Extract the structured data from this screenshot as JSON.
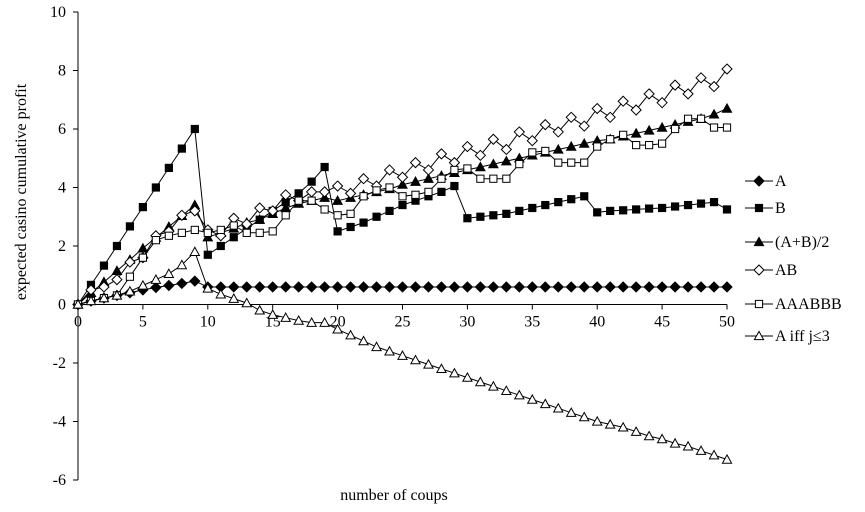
{
  "chart_data": {
    "type": "line",
    "title": "",
    "xlabel": "number of coups",
    "ylabel": "expected casino cumulative profit",
    "xlim": [
      0,
      50
    ],
    "ylim": [
      -6,
      10
    ],
    "xticks": [
      0,
      5,
      10,
      15,
      20,
      25,
      30,
      35,
      40,
      45,
      50
    ],
    "yticks": [
      -6,
      -4,
      -2,
      0,
      2,
      4,
      6,
      8,
      10
    ],
    "grid": false,
    "legend_position": "right",
    "x": [
      0,
      1,
      2,
      3,
      4,
      5,
      6,
      7,
      8,
      9,
      10,
      11,
      12,
      13,
      14,
      15,
      16,
      17,
      18,
      19,
      20,
      21,
      22,
      23,
      24,
      25,
      26,
      27,
      28,
      29,
      30,
      31,
      32,
      33,
      34,
      35,
      36,
      37,
      38,
      39,
      40,
      41,
      42,
      43,
      44,
      45,
      46,
      47,
      48,
      49,
      50
    ],
    "series": [
      {
        "name": "A",
        "marker": "diamond-filled",
        "values": [
          0,
          0.12,
          0.22,
          0.31,
          0.4,
          0.5,
          0.58,
          0.65,
          0.72,
          0.8,
          0.6,
          0.6,
          0.6,
          0.6,
          0.6,
          0.6,
          0.6,
          0.6,
          0.6,
          0.6,
          0.6,
          0.6,
          0.6,
          0.6,
          0.6,
          0.6,
          0.6,
          0.6,
          0.6,
          0.6,
          0.6,
          0.6,
          0.6,
          0.6,
          0.6,
          0.6,
          0.6,
          0.6,
          0.6,
          0.6,
          0.6,
          0.6,
          0.6,
          0.6,
          0.6,
          0.6,
          0.6,
          0.6,
          0.6,
          0.6,
          0.6
        ]
      },
      {
        "name": "B",
        "marker": "square-filled",
        "values": [
          0,
          0.67,
          1.33,
          2.0,
          2.67,
          3.33,
          4.0,
          4.67,
          5.33,
          6.0,
          1.7,
          2.0,
          2.3,
          2.6,
          2.9,
          3.2,
          3.5,
          3.8,
          4.2,
          4.7,
          2.5,
          2.65,
          2.8,
          3.0,
          3.2,
          3.4,
          3.55,
          3.7,
          3.85,
          4.05,
          2.95,
          3.0,
          3.05,
          3.1,
          3.2,
          3.3,
          3.4,
          3.5,
          3.6,
          3.7,
          3.15,
          3.2,
          3.22,
          3.25,
          3.28,
          3.3,
          3.35,
          3.4,
          3.45,
          3.5,
          3.25
        ]
      },
      {
        "name": "(A+B)/2",
        "marker": "triangle-filled",
        "values": [
          0,
          0.4,
          0.77,
          1.15,
          1.53,
          1.92,
          2.29,
          2.66,
          3.03,
          3.4,
          2.3,
          2.45,
          2.6,
          2.8,
          2.9,
          3.1,
          3.3,
          3.45,
          3.55,
          3.65,
          3.55,
          3.65,
          3.75,
          3.85,
          3.95,
          4.1,
          4.2,
          4.3,
          4.4,
          4.5,
          4.6,
          4.7,
          4.8,
          4.9,
          5.0,
          5.1,
          5.2,
          5.3,
          5.4,
          5.5,
          5.6,
          5.65,
          5.75,
          5.85,
          5.95,
          6.05,
          6.15,
          6.25,
          6.35,
          6.5,
          6.7
        ]
      },
      {
        "name": "AB",
        "marker": "diamond-open",
        "values": [
          0,
          0.5,
          0.6,
          0.85,
          1.45,
          1.6,
          2.35,
          2.5,
          3.05,
          3.2,
          2.55,
          2.35,
          2.95,
          2.75,
          3.3,
          3.2,
          3.75,
          3.55,
          3.85,
          3.85,
          4.05,
          3.8,
          4.3,
          4.05,
          4.6,
          4.35,
          4.85,
          4.6,
          5.15,
          4.85,
          5.4,
          5.1,
          5.65,
          5.3,
          5.9,
          5.6,
          6.15,
          5.9,
          6.4,
          6.1,
          6.7,
          6.4,
          6.95,
          6.65,
          7.2,
          6.9,
          7.5,
          7.2,
          7.75,
          7.45,
          8.05
        ]
      },
      {
        "name": "AAABBB",
        "marker": "square-open",
        "values": [
          0,
          0.12,
          0.22,
          0.31,
          0.95,
          1.6,
          2.2,
          2.35,
          2.45,
          2.55,
          2.45,
          2.55,
          2.7,
          2.45,
          2.45,
          2.5,
          3.05,
          3.55,
          3.55,
          3.25,
          3.05,
          3.1,
          3.7,
          3.9,
          4.0,
          3.7,
          3.75,
          3.85,
          4.3,
          4.6,
          4.65,
          4.3,
          4.3,
          4.3,
          4.8,
          5.2,
          5.25,
          4.85,
          4.85,
          4.85,
          5.4,
          5.65,
          5.8,
          5.45,
          5.45,
          5.5,
          6.0,
          6.35,
          6.35,
          6.05,
          6.05
        ]
      },
      {
        "name": "A iff j≤3",
        "marker": "triangle-open",
        "values": [
          0,
          0.12,
          0.22,
          0.31,
          0.45,
          0.65,
          0.85,
          1.05,
          1.35,
          1.8,
          0.55,
          0.35,
          0.2,
          0.05,
          -0.2,
          -0.35,
          -0.45,
          -0.55,
          -0.62,
          -0.62,
          -0.85,
          -1.05,
          -1.25,
          -1.45,
          -1.6,
          -1.75,
          -1.9,
          -2.05,
          -2.2,
          -2.35,
          -2.5,
          -2.65,
          -2.8,
          -2.95,
          -3.1,
          -3.25,
          -3.4,
          -3.55,
          -3.7,
          -3.85,
          -4.0,
          -4.1,
          -4.2,
          -4.35,
          -4.5,
          -4.6,
          -4.75,
          -4.85,
          -5.0,
          -5.15,
          -5.3
        ]
      }
    ]
  }
}
